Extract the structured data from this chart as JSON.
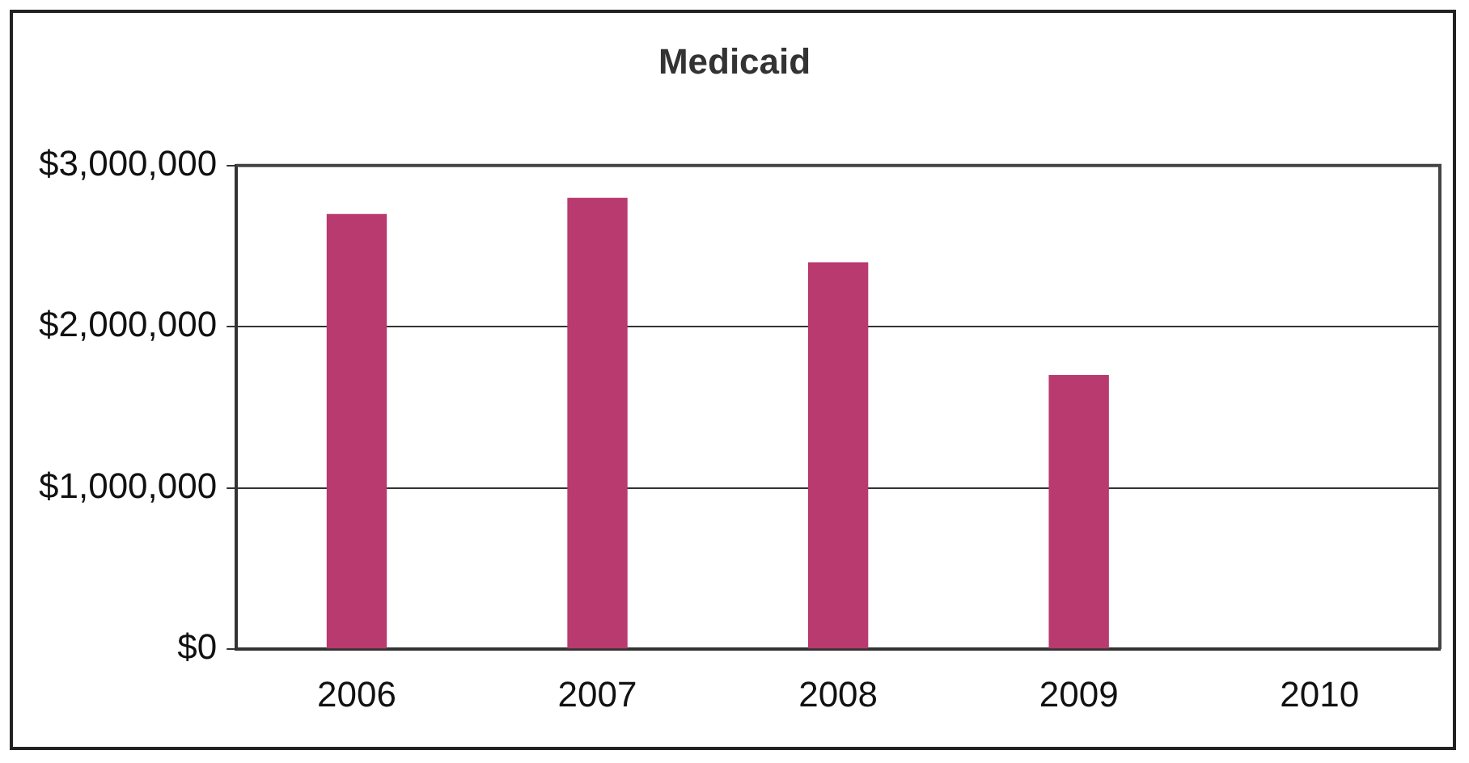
{
  "chart_data": {
    "type": "bar",
    "title": "Medicaid",
    "categories": [
      "2006",
      "2007",
      "2008",
      "2009",
      "2010"
    ],
    "values": [
      2700000,
      2800000,
      2400000,
      1700000,
      null
    ],
    "color": "#b83a6e",
    "ylim": [
      0,
      3000000
    ],
    "yticks": [
      {
        "value": 0,
        "label": "$0"
      },
      {
        "value": 1000000,
        "label": "$1,000,000"
      },
      {
        "value": 2000000,
        "label": "$2,000,000"
      },
      {
        "value": 3000000,
        "label": "$3,000,000"
      }
    ],
    "grid": "y"
  }
}
